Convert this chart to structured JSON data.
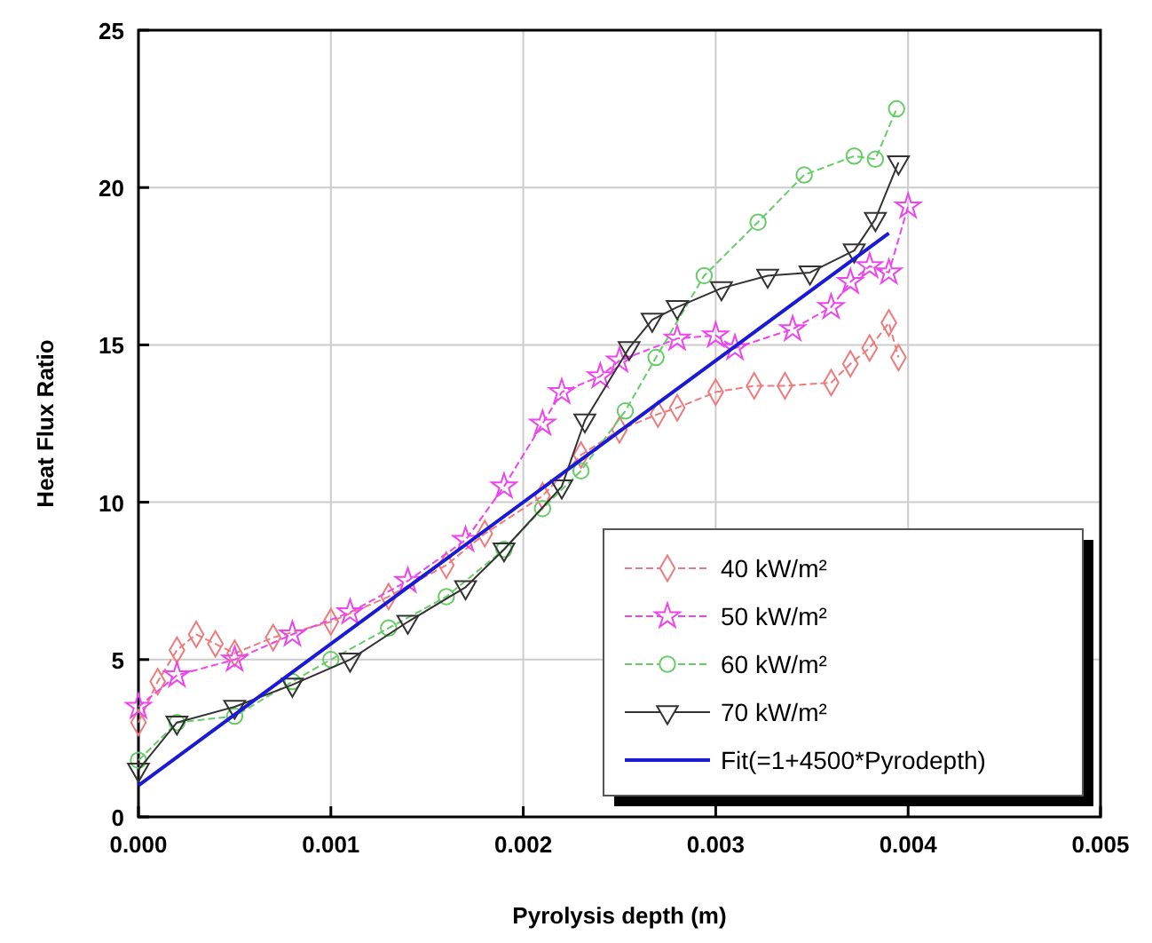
{
  "chart_data": {
    "type": "line",
    "xlabel": "Pyrolysis depth (m)",
    "ylabel": "Heat Flux Ratio",
    "xlim": [
      0,
      0.005
    ],
    "ylim": [
      0,
      25
    ],
    "xticks": [
      {
        "value": 0,
        "label": "0.000"
      },
      {
        "value": 0.001,
        "label": "0.001"
      },
      {
        "value": 0.002,
        "label": "0.002"
      },
      {
        "value": 0.003,
        "label": "0.003"
      },
      {
        "value": 0.004,
        "label": "0.004"
      },
      {
        "value": 0.005,
        "label": "0.005"
      }
    ],
    "yticks": [
      0,
      5,
      10,
      15,
      20,
      25
    ],
    "grid": true,
    "legend": "bottom right",
    "series": [
      {
        "name": "40 kW/m²",
        "color": "#ee7b7b",
        "marker": "diamond",
        "line_style": "dashed",
        "x": [
          0,
          0.0001,
          0.0002,
          0.0003,
          0.0004,
          0.0005,
          0.0007,
          0.001,
          0.0013,
          0.0016,
          0.0018,
          0.0021,
          0.0023,
          0.0025,
          0.0027,
          0.0028,
          0.003,
          0.0032,
          0.00336,
          0.0036,
          0.0037,
          0.0038,
          0.0039,
          0.00395
        ],
        "values": [
          3,
          4.3,
          5.3,
          5.8,
          5.5,
          5.2,
          5.7,
          6.2,
          7,
          8,
          9,
          10.2,
          11.5,
          12.3,
          12.8,
          13,
          13.5,
          13.7,
          13.7,
          13.8,
          14.4,
          14.9,
          15.7,
          14.6
        ]
      },
      {
        "name": "50 kW/m²",
        "color": "#ee44ee",
        "marker": "star",
        "line_style": "dashed",
        "x": [
          0,
          0.0002,
          0.0005,
          0.0008,
          0.0011,
          0.0014,
          0.0017,
          0.0019,
          0.0021,
          0.0022,
          0.0024,
          0.0025,
          0.0028,
          0.003,
          0.0031,
          0.0034,
          0.0036,
          0.0037,
          0.0038,
          0.0039,
          0.004
        ],
        "values": [
          3.5,
          4.5,
          5,
          5.8,
          6.5,
          7.5,
          8.8,
          10.5,
          12.5,
          13.5,
          14,
          14.5,
          15.2,
          15.3,
          14.9,
          15.5,
          16.2,
          17,
          17.5,
          17.3,
          19.4
        ]
      },
      {
        "name": "60 kW/m²",
        "color": "#66cc66",
        "marker": "circle",
        "line_style": "dashed",
        "x": [
          0,
          0.0002,
          0.0005,
          0.0008,
          0.001,
          0.0013,
          0.0016,
          0.0019,
          0.0021,
          0.0023,
          0.00253,
          0.00269,
          0.00294,
          0.00322,
          0.00346,
          0.00372,
          0.00383,
          0.00394
        ],
        "values": [
          1.8,
          3,
          3.2,
          4.3,
          5,
          6,
          7,
          8.5,
          9.8,
          11,
          12.9,
          14.6,
          17.2,
          18.9,
          20.4,
          21,
          20.9,
          22.5
        ]
      },
      {
        "name": "70 kW/m²",
        "color": "#333333",
        "marker": "triangle",
        "line_style": "solid",
        "x": [
          0,
          0.0002,
          0.0005,
          0.0008,
          0.0011,
          0.0014,
          0.0017,
          0.0019,
          0.0022,
          0.00232,
          0.00255,
          0.00267,
          0.0028,
          0.00303,
          0.00327,
          0.00349,
          0.00372,
          0.00383,
          0.00395
        ],
        "values": [
          1.5,
          3,
          3.5,
          4.2,
          5,
          6.2,
          7.3,
          8.5,
          10.5,
          12.6,
          14.9,
          15.8,
          16.2,
          16.8,
          17.2,
          17.3,
          18,
          19,
          20.8
        ]
      },
      {
        "name": "Fit(=1+4500*Pyrodepth)",
        "color": "#1a1ad6",
        "marker": "none",
        "line_style": "solid",
        "x": [
          0,
          0.0039
        ],
        "values": [
          1,
          18.55
        ]
      }
    ]
  }
}
